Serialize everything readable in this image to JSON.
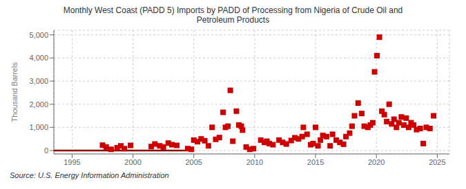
{
  "chart_data": {
    "type": "scatter",
    "title": "Monthly West Coast (PADD 5) Imports by PADD of Processing from Nigeria of Crude Oil and\nPetroleum Products",
    "ylabel": "Thousand Barrels",
    "source": "Source: U.S. Energy Information Administration",
    "xlim": [
      1993.5,
      2026
    ],
    "ylim": [
      -150,
      5200
    ],
    "xticks": [
      1995,
      2000,
      2005,
      2010,
      2015,
      2020,
      2025
    ],
    "yticks": [
      0,
      {
        "value": 1000,
        "label": "1,000"
      },
      {
        "value": 2000,
        "label": "2,000"
      },
      {
        "value": 3000,
        "label": "3,000"
      },
      {
        "value": 4000,
        "label": "4,000"
      },
      {
        "value": 5000,
        "label": "5,000"
      }
    ],
    "grid": true,
    "series": [
      {
        "type": "line",
        "color": "#8b0000",
        "x": [
          1993.5,
          2004.3
        ],
        "values": [
          0,
          0
        ]
      },
      {
        "type": "scatter",
        "marker": "square",
        "color": "#cc0000",
        "x": [
          1997.5,
          1997.8,
          1998.2,
          1998.7,
          1999.0,
          1999.3,
          1999.8,
          2001.5,
          2001.8,
          2002.2,
          2002.5,
          2002.9,
          2003.2,
          2003.6,
          2004.5,
          2004.8,
          2005.0,
          2005.3,
          2005.6,
          2005.9,
          2006.2,
          2006.5,
          2006.8,
          2007.1,
          2007.4,
          2007.6,
          2007.8,
          2008.0,
          2008.2,
          2008.5,
          2008.7,
          2008.9,
          2009.0,
          2009.3,
          2009.6,
          2009.9,
          2010.5,
          2010.8,
          2011.0,
          2011.2,
          2011.5,
          2012.0,
          2012.3,
          2012.6,
          2013.0,
          2013.3,
          2013.6,
          2013.9,
          2014.0,
          2014.3,
          2014.6,
          2014.8,
          2015.0,
          2015.2,
          2015.4,
          2015.6,
          2015.9,
          2016.2,
          2016.4,
          2016.7,
          2017.0,
          2017.3,
          2017.5,
          2017.8,
          2018.0,
          2018.2,
          2018.5,
          2018.8,
          2019.0,
          2019.3,
          2019.5,
          2019.7,
          2019.85,
          2020.05,
          2020.25,
          2020.45,
          2020.65,
          2020.85,
          2021.05,
          2021.25,
          2021.45,
          2021.65,
          2021.85,
          2022.05,
          2022.25,
          2022.45,
          2022.65,
          2022.85,
          2023.05,
          2023.3,
          2023.6,
          2023.85,
          2024.1,
          2024.4,
          2024.7
        ],
        "values": [
          230,
          150,
          50,
          120,
          200,
          80,
          220,
          170,
          280,
          200,
          150,
          320,
          250,
          220,
          80,
          50,
          450,
          380,
          500,
          420,
          200,
          1000,
          480,
          560,
          1650,
          1000,
          1050,
          2600,
          400,
          1700,
          1100,
          1050,
          880,
          150,
          50,
          80,
          450,
          350,
          400,
          300,
          250,
          450,
          350,
          280,
          430,
          550,
          500,
          600,
          1000,
          700,
          250,
          300,
          1000,
          200,
          450,
          650,
          600,
          200,
          700,
          450,
          350,
          270,
          600,
          750,
          1050,
          1500,
          2050,
          1600,
          1050,
          1000,
          1100,
          1200,
          3400,
          4100,
          4900,
          1700,
          1550,
          1250,
          2000,
          1150,
          1350,
          1000,
          1200,
          1450,
          1100,
          1400,
          1000,
          1200,
          1100,
          900,
          950,
          300,
          1000,
          950,
          1500
        ]
      }
    ]
  }
}
